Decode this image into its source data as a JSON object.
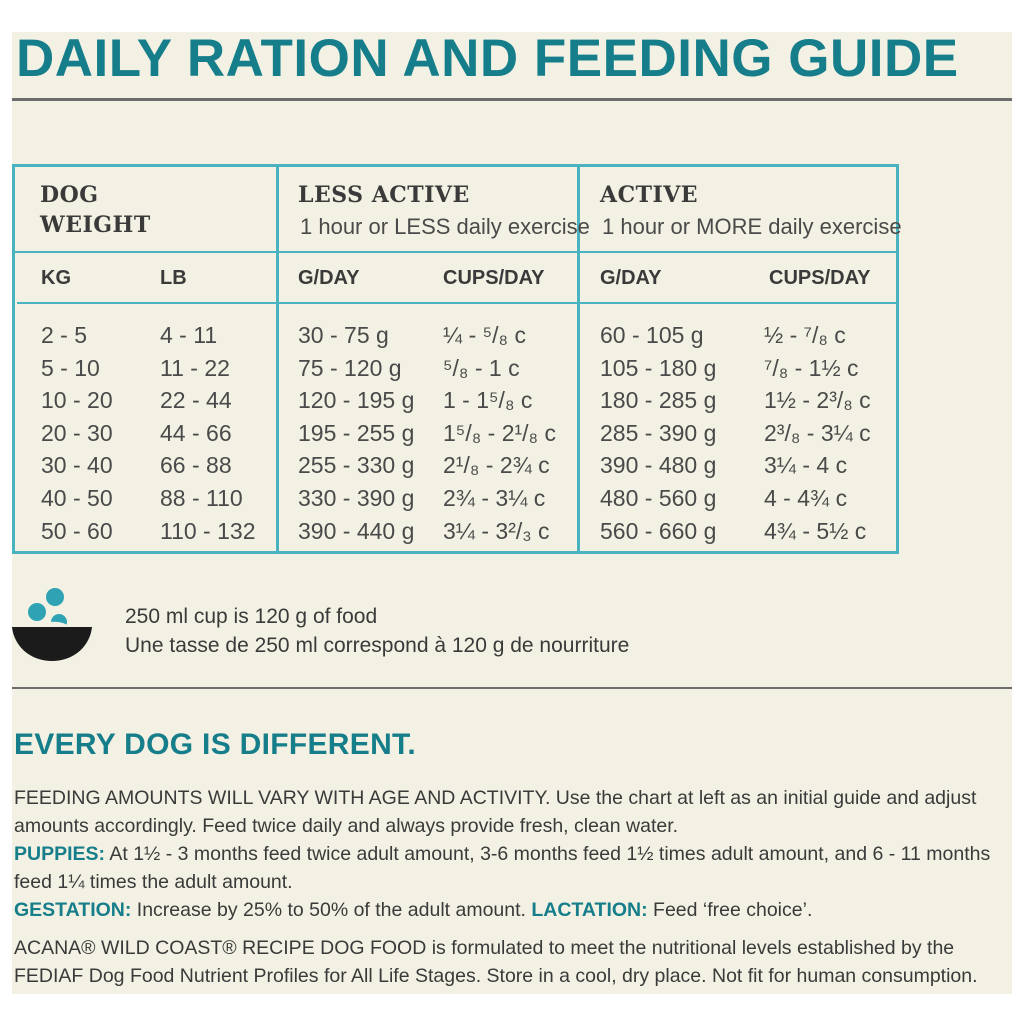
{
  "title": "DAILY RATION AND FEEDING GUIDE",
  "table": {
    "dog_weight": "DOG WEIGHT",
    "less_active": {
      "title": "LESS ACTIVE",
      "subtitle": "1 hour or LESS daily exercise"
    },
    "active": {
      "title": "ACTIVE",
      "subtitle": "1 hour or MORE daily exercise"
    },
    "columns": [
      "KG",
      "LB",
      "G/DAY",
      "CUPS/DAY",
      "G/DAY",
      "CUPS/DAY"
    ],
    "rows": [
      [
        "2 - 5",
        "4 - 11",
        "30 - 75 g",
        "¼ - ⁵/₈ c",
        "60 - 105 g",
        "½ - ⁷/₈ c"
      ],
      [
        "5 - 10",
        "11 - 22",
        "75 - 120 g",
        "⁵/₈ - 1 c",
        "105 - 180 g",
        "⁷/₈ - 1½ c"
      ],
      [
        "10 - 20",
        "22 - 44",
        "120 - 195 g",
        "1 - 1⁵/₈ c",
        "180 - 285 g",
        "1½ - 2³/₈ c"
      ],
      [
        "20 - 30",
        "44 - 66",
        "195 - 255 g",
        "1⁵/₈ - 2¹/₈ c",
        "285 - 390 g",
        "2³/₈ - 3¼ c"
      ],
      [
        "30 - 40",
        "66 - 88",
        "255 - 330 g",
        "2¹/₈ - 2¾ c",
        "390 - 480 g",
        "3¼ - 4  c"
      ],
      [
        "40 - 50",
        "88 - 110",
        "330 - 390 g",
        "2¾ - 3¼ c",
        "480 - 560 g",
        "4 - 4¾ c"
      ],
      [
        "50 - 60",
        "110 - 132",
        "390 - 440 g",
        "3¼ - 3²/₃ c",
        "560 - 660 g",
        "4¾ - 5½ c"
      ]
    ]
  },
  "cup_note": {
    "en": "250 ml cup is 120 g of food",
    "fr": "Une tasse de 250 ml correspond à 120 g de nourriture"
  },
  "section": {
    "heading": "EVERY DOG IS DIFFERENT.",
    "p1": "FEEDING AMOUNTS WILL VARY WITH AGE AND ACTIVITY.  Use the chart at left as an initial guide and adjust amounts accordingly. Feed twice daily and always provide fresh, clean water.",
    "puppies_label": "PUPPIES:",
    "puppies_text": " At 1½ - 3 months feed twice adult amount, 3-6 months feed 1½ times adult amount, and 6 - 11 months feed 1¼ times the adult amount.",
    "gestation_label": "GESTATION:",
    "gestation_text": " Increase by 25% to 50% of the adult amount. ",
    "lactation_label": "LACTATION:",
    "lactation_text": " Feed ‘free choice’.",
    "p4": "ACANA® WILD COAST® RECIPE DOG FOOD is formulated to meet the nutritional levels established by the FEDIAF Dog Food Nutrient Profiles for All Life Stages. Store in a cool, dry place. Not fit for human consumption."
  },
  "colors": {
    "accent": "#167e8a",
    "table_border": "#49b3c0",
    "background": "#f3f1e3"
  }
}
